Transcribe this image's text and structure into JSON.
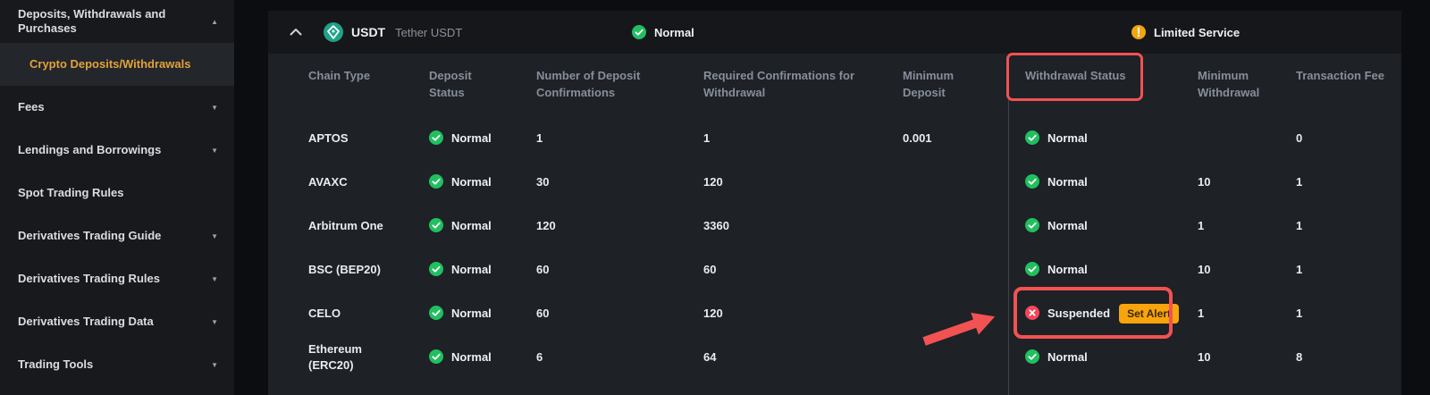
{
  "sidebar": {
    "items": [
      {
        "label": "Deposits, Withdrawals and Purchases",
        "arrow": "up",
        "sub": false,
        "selected": false
      },
      {
        "label": "Crypto Deposits/Withdrawals",
        "arrow": "",
        "sub": true,
        "selected": true
      },
      {
        "label": "Fees",
        "arrow": "down",
        "sub": false,
        "selected": false
      },
      {
        "label": "Lendings and Borrowings",
        "arrow": "down",
        "sub": false,
        "selected": false
      },
      {
        "label": "Spot Trading Rules",
        "arrow": "",
        "sub": false,
        "selected": false
      },
      {
        "label": "Derivatives Trading Guide",
        "arrow": "down",
        "sub": false,
        "selected": false
      },
      {
        "label": "Derivatives Trading Rules",
        "arrow": "down",
        "sub": false,
        "selected": false
      },
      {
        "label": "Derivatives Trading Data",
        "arrow": "down",
        "sub": false,
        "selected": false
      },
      {
        "label": "Trading Tools",
        "arrow": "down",
        "sub": false,
        "selected": false
      }
    ]
  },
  "coin_header": {
    "symbol": "USDT",
    "name": "Tether USDT",
    "deposit_service_status": "Normal",
    "withdrawal_service_status": "Limited Service"
  },
  "table": {
    "columns": [
      "Chain Type",
      "Deposit Status",
      "Number of Deposit Confirmations",
      "Required Confirmations for Withdrawal",
      "Minimum Deposit",
      "Withdrawal Status",
      "Minimum Withdrawal",
      "Transaction Fee"
    ],
    "set_alert_label": "Set Alert",
    "rows": [
      {
        "chain": "APTOS",
        "deposit_status": "Normal",
        "deposit_confirmations": "1",
        "withdrawal_confirmations": "1",
        "min_deposit": "0.001",
        "withdrawal_status": "Normal",
        "withdrawal_suspended": false,
        "min_withdrawal": "",
        "transaction_fee": "0"
      },
      {
        "chain": "AVAXC",
        "deposit_status": "Normal",
        "deposit_confirmations": "30",
        "withdrawal_confirmations": "120",
        "min_deposit": "",
        "withdrawal_status": "Normal",
        "withdrawal_suspended": false,
        "min_withdrawal": "10",
        "transaction_fee": "1"
      },
      {
        "chain": "Arbitrum One",
        "deposit_status": "Normal",
        "deposit_confirmations": "120",
        "withdrawal_confirmations": "3360",
        "min_deposit": "",
        "withdrawal_status": "Normal",
        "withdrawal_suspended": false,
        "min_withdrawal": "1",
        "transaction_fee": "1"
      },
      {
        "chain": "BSC (BEP20)",
        "deposit_status": "Normal",
        "deposit_confirmations": "60",
        "withdrawal_confirmations": "60",
        "min_deposit": "",
        "withdrawal_status": "Normal",
        "withdrawal_suspended": false,
        "min_withdrawal": "10",
        "transaction_fee": "1"
      },
      {
        "chain": "CELO",
        "deposit_status": "Normal",
        "deposit_confirmations": "60",
        "withdrawal_confirmations": "120",
        "min_deposit": "",
        "withdrawal_status": "Suspended",
        "withdrawal_suspended": true,
        "min_withdrawal": "1",
        "transaction_fee": "1"
      },
      {
        "chain": "Ethereum (ERC20)",
        "deposit_status": "Normal",
        "deposit_confirmations": "6",
        "withdrawal_confirmations": "64",
        "min_deposit": "",
        "withdrawal_status": "Normal",
        "withdrawal_suspended": false,
        "min_withdrawal": "10",
        "transaction_fee": "8"
      }
    ]
  },
  "colors": {
    "accent_gold": "#e2a23a",
    "status_green": "#21bf60",
    "status_red": "#f6465d",
    "warning_orange": "#f2a50c",
    "set_alert_bg": "#f8a40d",
    "annotation_red": "#f25252"
  }
}
